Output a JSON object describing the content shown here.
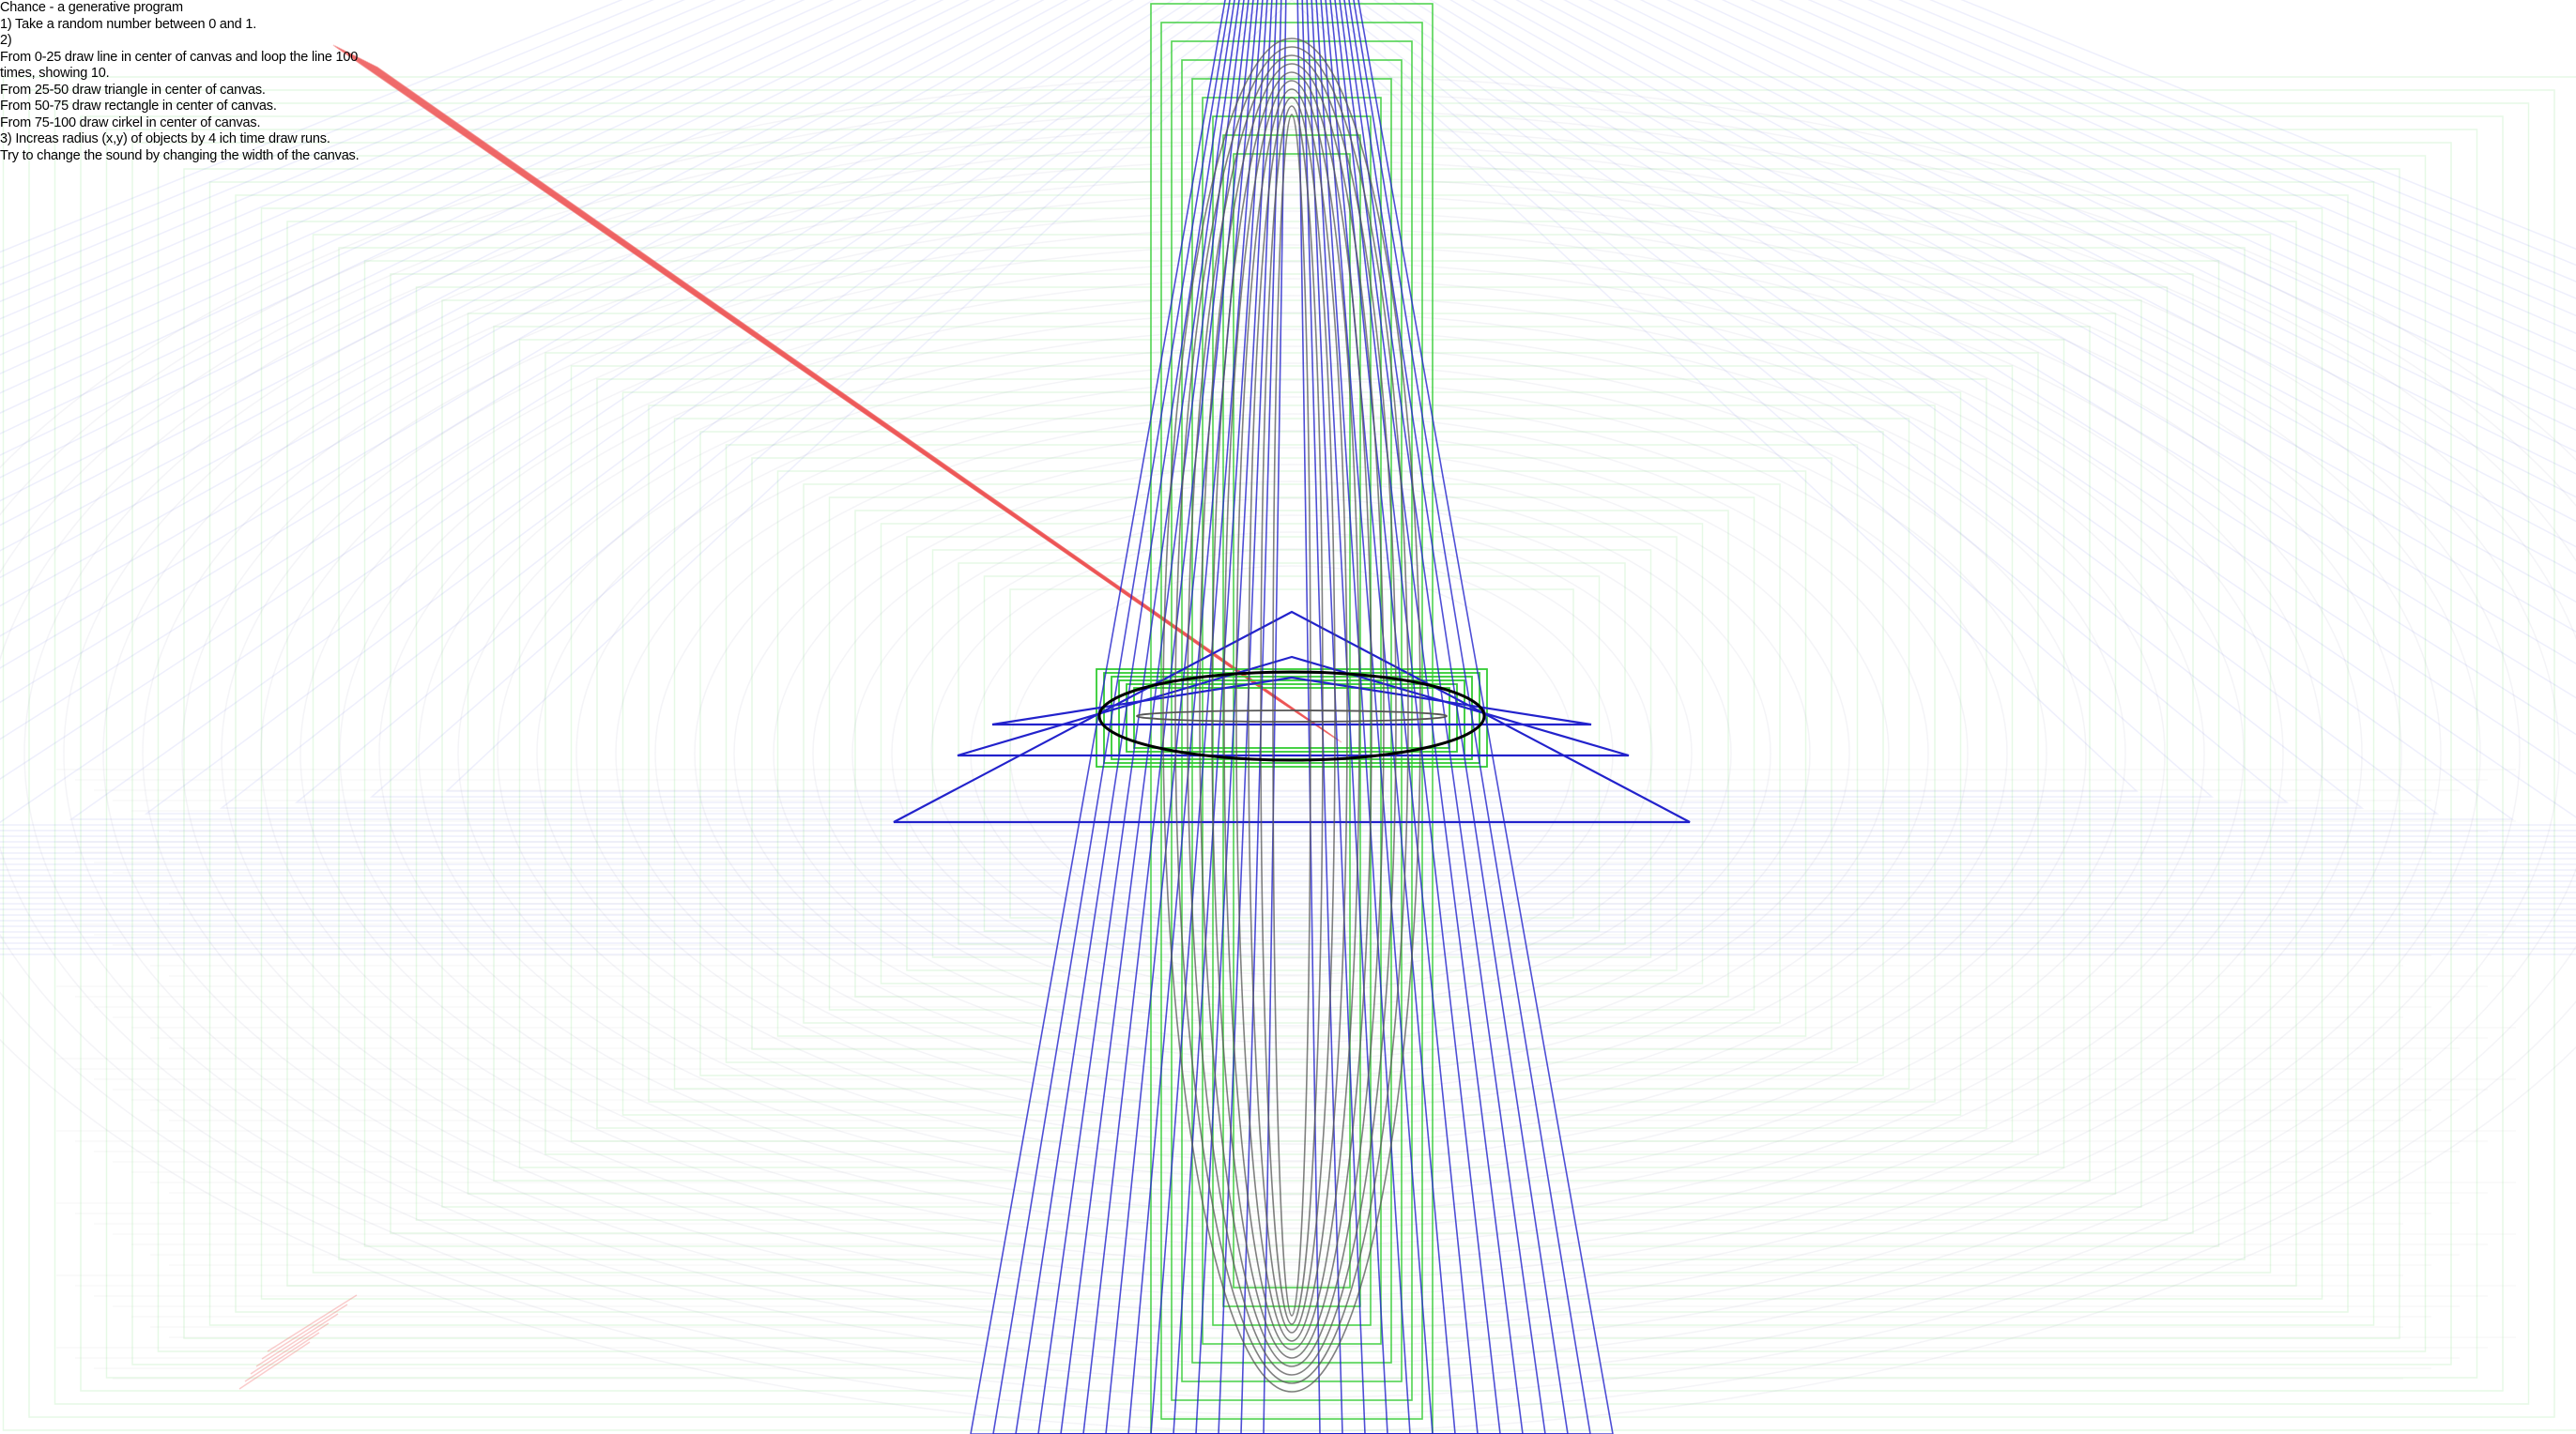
{
  "instructions": {
    "title": "Chance - a generative program",
    "step1": " 1) Take a random number between 0 and 1.",
    "step2": " 2)",
    "step2a": " From 0-25 draw line in center of canvas and loop the line 100 times, showing 10.",
    "step2b": " From 25-50 draw triangle in center of canvas.",
    "step2c": " From 50-75 draw rectangle in center of canvas.",
    "step2d": " From 75-100 draw cirkel in center of canvas.",
    "step3": " 3) Increas radius (x,y) of objects by 4 ich time draw runs.",
    "hint": " Try to change the sound by changing the width of the canvas."
  },
  "colors": {
    "line": "#ee5555",
    "triangle": "#2222cc",
    "rectangle": "#33cc33",
    "circle": "#555555",
    "circle_current": "#000000",
    "background": "#ffffff"
  }
}
